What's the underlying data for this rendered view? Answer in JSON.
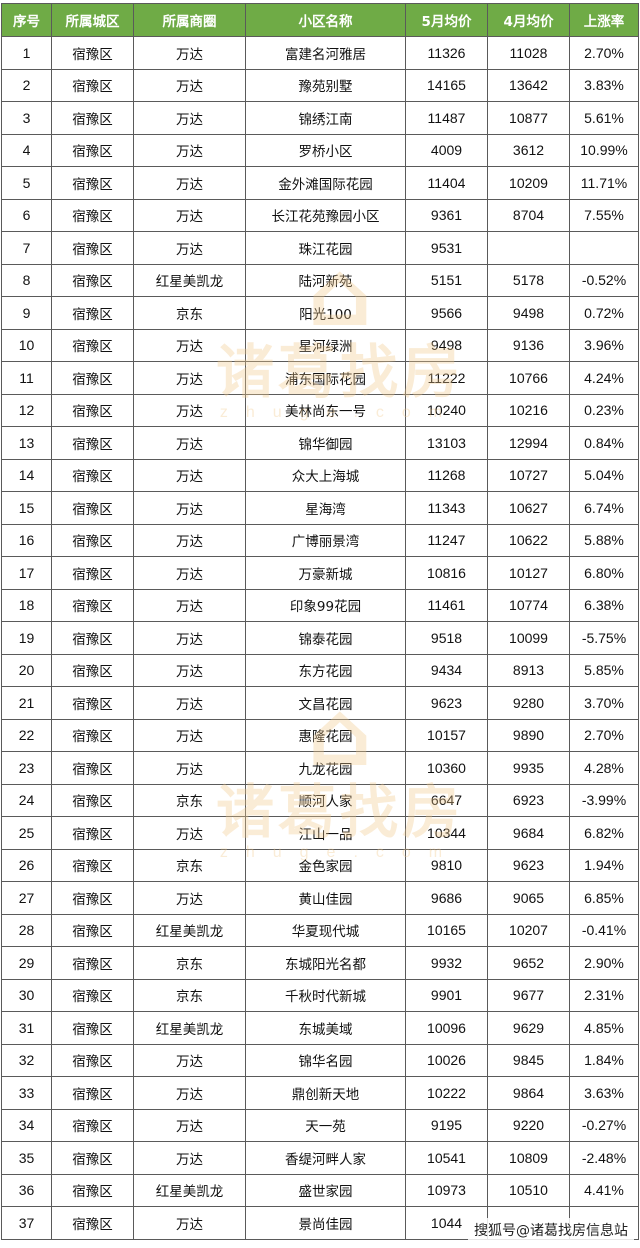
{
  "table": {
    "headers": [
      "序号",
      "所属城区",
      "所属商圈",
      "小区名称",
      "5月均价",
      "4月均价",
      "上涨率"
    ],
    "rows": [
      [
        "1",
        "宿豫区",
        "万达",
        "富建名河雅居",
        "11326",
        "11028",
        "2.70%"
      ],
      [
        "2",
        "宿豫区",
        "万达",
        "豫苑别墅",
        "14165",
        "13642",
        "3.83%"
      ],
      [
        "3",
        "宿豫区",
        "万达",
        "锦绣江南",
        "11487",
        "10877",
        "5.61%"
      ],
      [
        "4",
        "宿豫区",
        "万达",
        "罗桥小区",
        "4009",
        "3612",
        "10.99%"
      ],
      [
        "5",
        "宿豫区",
        "万达",
        "金外滩国际花园",
        "11404",
        "10209",
        "11.71%"
      ],
      [
        "6",
        "宿豫区",
        "万达",
        "长江花苑豫园小区",
        "9361",
        "8704",
        "7.55%"
      ],
      [
        "7",
        "宿豫区",
        "万达",
        "珠江花园",
        "9531",
        "",
        ""
      ],
      [
        "8",
        "宿豫区",
        "红星美凯龙",
        "陆河新苑",
        "5151",
        "5178",
        "-0.52%"
      ],
      [
        "9",
        "宿豫区",
        "京东",
        "阳光100",
        "9566",
        "9498",
        "0.72%"
      ],
      [
        "10",
        "宿豫区",
        "万达",
        "星河绿洲",
        "9498",
        "9136",
        "3.96%"
      ],
      [
        "11",
        "宿豫区",
        "万达",
        "浦东国际花园",
        "11222",
        "10766",
        "4.24%"
      ],
      [
        "12",
        "宿豫区",
        "万达",
        "美林尚东一号",
        "10240",
        "10216",
        "0.23%"
      ],
      [
        "13",
        "宿豫区",
        "万达",
        "锦华御园",
        "13103",
        "12994",
        "0.84%"
      ],
      [
        "14",
        "宿豫区",
        "万达",
        "众大上海城",
        "11268",
        "10727",
        "5.04%"
      ],
      [
        "15",
        "宿豫区",
        "万达",
        "星海湾",
        "11343",
        "10627",
        "6.74%"
      ],
      [
        "16",
        "宿豫区",
        "万达",
        "广博丽景湾",
        "11247",
        "10622",
        "5.88%"
      ],
      [
        "17",
        "宿豫区",
        "万达",
        "万豪新城",
        "10816",
        "10127",
        "6.80%"
      ],
      [
        "18",
        "宿豫区",
        "万达",
        "印象99花园",
        "11461",
        "10774",
        "6.38%"
      ],
      [
        "19",
        "宿豫区",
        "万达",
        "锦泰花园",
        "9518",
        "10099",
        "-5.75%"
      ],
      [
        "20",
        "宿豫区",
        "万达",
        "东方花园",
        "9434",
        "8913",
        "5.85%"
      ],
      [
        "21",
        "宿豫区",
        "万达",
        "文昌花园",
        "9623",
        "9280",
        "3.70%"
      ],
      [
        "22",
        "宿豫区",
        "万达",
        "惠隆花园",
        "10157",
        "9890",
        "2.70%"
      ],
      [
        "23",
        "宿豫区",
        "万达",
        "九龙花园",
        "10360",
        "9935",
        "4.28%"
      ],
      [
        "24",
        "宿豫区",
        "京东",
        "顺河人家",
        "6647",
        "6923",
        "-3.99%"
      ],
      [
        "25",
        "宿豫区",
        "万达",
        "江山一品",
        "10344",
        "9684",
        "6.82%"
      ],
      [
        "26",
        "宿豫区",
        "京东",
        "金色家园",
        "9810",
        "9623",
        "1.94%"
      ],
      [
        "27",
        "宿豫区",
        "万达",
        "黄山佳园",
        "9686",
        "9065",
        "6.85%"
      ],
      [
        "28",
        "宿豫区",
        "红星美凯龙",
        "华夏现代城",
        "10165",
        "10207",
        "-0.41%"
      ],
      [
        "29",
        "宿豫区",
        "京东",
        "东城阳光名都",
        "9932",
        "9652",
        "2.90%"
      ],
      [
        "30",
        "宿豫区",
        "京东",
        "千秋时代新城",
        "9901",
        "9677",
        "2.31%"
      ],
      [
        "31",
        "宿豫区",
        "红星美凯龙",
        "东城美域",
        "10096",
        "9629",
        "4.85%"
      ],
      [
        "32",
        "宿豫区",
        "万达",
        "锦华名园",
        "10026",
        "9845",
        "1.84%"
      ],
      [
        "33",
        "宿豫区",
        "万达",
        "鼎创新天地",
        "10222",
        "9864",
        "3.63%"
      ],
      [
        "34",
        "宿豫区",
        "万达",
        "天一苑",
        "9195",
        "9220",
        "-0.27%"
      ],
      [
        "35",
        "宿豫区",
        "万达",
        "香缇河畔人家",
        "10541",
        "10809",
        "-2.48%"
      ],
      [
        "36",
        "宿豫区",
        "红星美凯龙",
        "盛世家园",
        "10973",
        "10510",
        "4.41%"
      ],
      [
        "37",
        "宿豫区",
        "万达",
        "景尚佳园",
        "1044",
        "",
        ""
      ]
    ]
  },
  "watermark": {
    "text": "诸葛找房",
    "sub": "zhuge.com",
    "logo_icon": "house-logo-icon"
  },
  "credit": "搜狐号@诸葛找房信息站"
}
